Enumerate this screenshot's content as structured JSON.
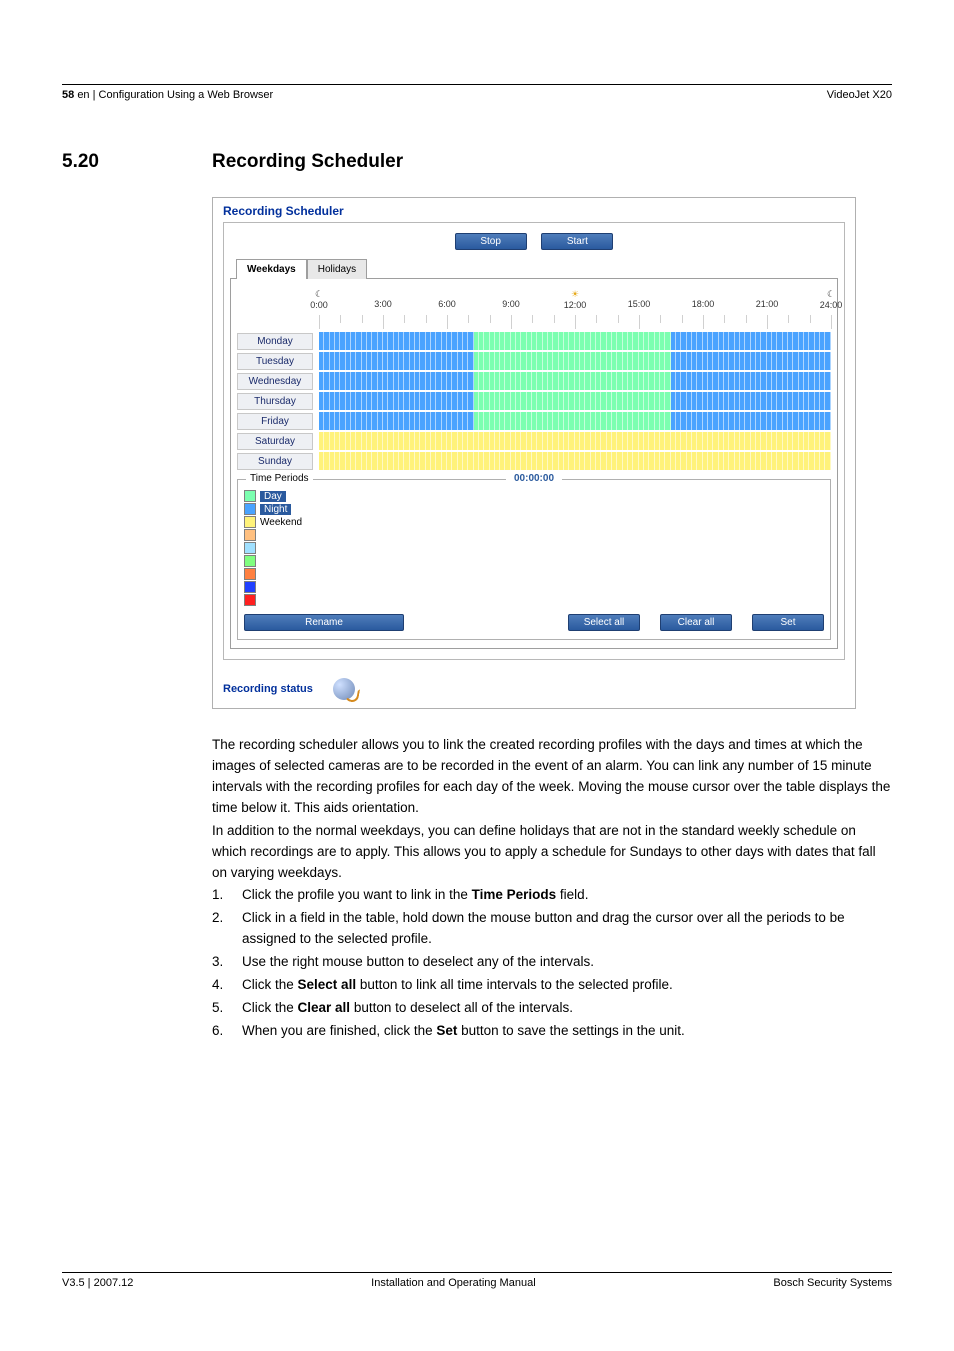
{
  "header": {
    "page_no": "58",
    "breadcrumb": "en | Configuration Using a Web Browser",
    "product": "VideoJet X20"
  },
  "section": {
    "number": "5.20",
    "title": "Recording Scheduler"
  },
  "screenshot": {
    "panel_title": "Recording Scheduler",
    "btn_stop": "Stop",
    "btn_start": "Start",
    "tabs": {
      "weekdays": "Weekdays",
      "holidays": "Holidays"
    },
    "axis": {
      "labels": [
        "0:00",
        "3:00",
        "6:00",
        "9:00",
        "12:00",
        "15:00",
        "18:00",
        "21:00",
        "24:00"
      ],
      "positions_pct": [
        0,
        12.5,
        25,
        37.5,
        50,
        62.5,
        75,
        87.5,
        100
      ],
      "sun_left": "☾",
      "sun_mid": "☀",
      "sun_right": "☾"
    },
    "days": [
      "Monday",
      "Tuesday",
      "Wednesday",
      "Thursday",
      "Friday",
      "Saturday",
      "Sunday"
    ],
    "segments": {
      "weekday": [
        {
          "from": 0,
          "to": 29.17,
          "color": "#4aa3ff"
        },
        {
          "from": 29.17,
          "to": 68.75,
          "color": "#7cffb0"
        },
        {
          "from": 68.75,
          "to": 100,
          "color": "#4aa3ff"
        }
      ],
      "weekend": [
        {
          "from": 0,
          "to": 100,
          "color": "#fff27a"
        }
      ],
      "seg_count": 96
    },
    "time_periods": {
      "legend": "Time Periods",
      "clock": "00:00:00",
      "items": [
        {
          "label": "Day",
          "color": "#7cffb0",
          "selected": true
        },
        {
          "label": "Night",
          "color": "#4aa3ff",
          "selected": true
        },
        {
          "label": "Weekend",
          "color": "#fff27a",
          "selected": false
        },
        {
          "label": "",
          "color": "#ffc080",
          "selected": false
        },
        {
          "label": "",
          "color": "#a0e0ff",
          "selected": false
        },
        {
          "label": "",
          "color": "#80ff80",
          "selected": false
        },
        {
          "label": "",
          "color": "#ff8040",
          "selected": false
        },
        {
          "label": "",
          "color": "#2040ff",
          "selected": false
        },
        {
          "label": "",
          "color": "#ff2020",
          "selected": false
        }
      ],
      "btn_rename": "Rename",
      "btn_select_all": "Select all",
      "btn_clear_all": "Clear all",
      "btn_set": "Set"
    },
    "status_label": "Recording status"
  },
  "prose": {
    "p1": "The recording scheduler allows you to link the created recording profiles with the days and times at which the images of selected cameras are to be recorded in the event of an alarm. You can link any number of 15 minute intervals with the recording profiles for each day of the week. Moving the mouse cursor over the table displays the time below it. This aids orientation.",
    "p2": "In addition to the normal weekdays, you can define holidays that are not in the standard weekly schedule on which recordings are to apply. This allows you to apply a schedule for Sundays to other days with dates that fall on varying weekdays.",
    "steps": {
      "s1a": "Click the profile you want to link in the ",
      "s1b": "Time Periods",
      "s1c": " field.",
      "s2": "Click in a field in the table, hold down the mouse button and drag the cursor over all the periods to be assigned to the selected profile.",
      "s3": "Use the right mouse button to deselect any of the intervals.",
      "s4a": "Click the ",
      "s4b": "Select all",
      "s4c": " button to link all time intervals to the selected profile.",
      "s5a": "Click the ",
      "s5b": "Clear all",
      "s5c": " button to deselect all of the intervals.",
      "s6a": "When you are finished, click the ",
      "s6b": "Set",
      "s6c": " button to save the settings in the unit."
    }
  },
  "footer": {
    "left": "V3.5 | 2007.12",
    "center": "Installation and Operating Manual",
    "right": "Bosch Security Systems"
  }
}
